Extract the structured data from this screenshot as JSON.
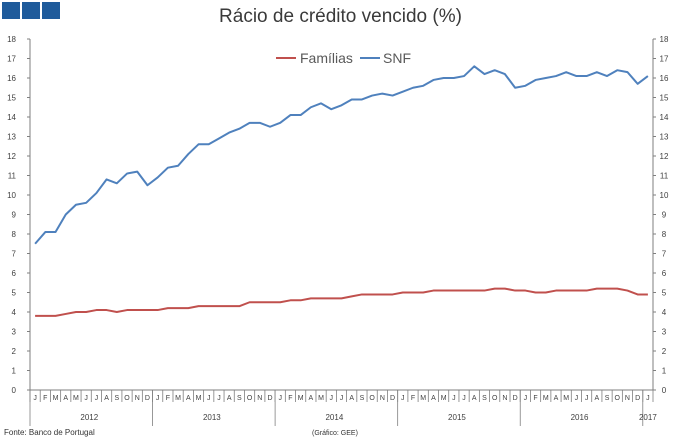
{
  "header": {
    "title": "Rácio de crédito vencido (%)"
  },
  "footer": {
    "source": "Fonte: Banco de Portugal",
    "credit": "(Gráfico: GEE)"
  },
  "colors": {
    "familias": "#c0504d",
    "snf": "#4f81bd",
    "logo": "#1f5b9b"
  },
  "chart_data": {
    "type": "line",
    "title": "Rácio de crédito vencido (%)",
    "xlabel": "",
    "ylabel": "",
    "ylim": [
      0,
      18
    ],
    "yticks": [
      0,
      1,
      2,
      3,
      4,
      5,
      6,
      7,
      8,
      9,
      10,
      11,
      12,
      13,
      14,
      15,
      16,
      17,
      18
    ],
    "grid": false,
    "legend": "top-center",
    "month_labels": [
      "J",
      "F",
      "M",
      "A",
      "M",
      "J",
      "J",
      "A",
      "S",
      "O",
      "N",
      "D",
      "J",
      "F",
      "M",
      "A",
      "M",
      "J",
      "J",
      "A",
      "S",
      "O",
      "N",
      "D",
      "J",
      "F",
      "M",
      "A",
      "M",
      "J",
      "J",
      "A",
      "S",
      "O",
      "N",
      "D",
      "J",
      "F",
      "M",
      "A",
      "M",
      "J",
      "J",
      "A",
      "S",
      "O",
      "N",
      "D",
      "J",
      "F",
      "M",
      "A",
      "M",
      "J",
      "J",
      "A",
      "S",
      "O",
      "N",
      "D",
      "J"
    ],
    "year_labels": [
      "2012",
      "2013",
      "2014",
      "2015",
      "2016",
      "2017"
    ],
    "series": [
      {
        "name": "Famílias",
        "values": [
          3.8,
          3.8,
          3.8,
          3.9,
          4.0,
          4.0,
          4.1,
          4.1,
          4.0,
          4.1,
          4.1,
          4.1,
          4.1,
          4.2,
          4.2,
          4.2,
          4.3,
          4.3,
          4.3,
          4.3,
          4.3,
          4.5,
          4.5,
          4.5,
          4.5,
          4.6,
          4.6,
          4.7,
          4.7,
          4.7,
          4.7,
          4.8,
          4.9,
          4.9,
          4.9,
          4.9,
          5.0,
          5.0,
          5.0,
          5.1,
          5.1,
          5.1,
          5.1,
          5.1,
          5.1,
          5.2,
          5.2,
          5.1,
          5.1,
          5.0,
          5.0,
          5.1,
          5.1,
          5.1,
          5.1,
          5.2,
          5.2,
          5.2,
          5.1,
          4.9,
          4.9
        ]
      },
      {
        "name": "SNF",
        "values": [
          7.5,
          8.1,
          8.1,
          9.0,
          9.5,
          9.6,
          10.1,
          10.8,
          10.6,
          11.1,
          11.2,
          10.5,
          10.9,
          11.4,
          11.5,
          12.1,
          12.6,
          12.6,
          12.9,
          13.2,
          13.4,
          13.7,
          13.7,
          13.5,
          13.7,
          14.1,
          14.1,
          14.5,
          14.7,
          14.4,
          14.6,
          14.9,
          14.9,
          15.1,
          15.2,
          15.1,
          15.3,
          15.5,
          15.6,
          15.9,
          16.0,
          16.0,
          16.1,
          16.6,
          16.2,
          16.4,
          16.2,
          15.5,
          15.6,
          15.9,
          16.0,
          16.1,
          16.3,
          16.1,
          16.1,
          16.3,
          16.1,
          16.4,
          16.3,
          15.7,
          16.1
        ]
      }
    ]
  }
}
